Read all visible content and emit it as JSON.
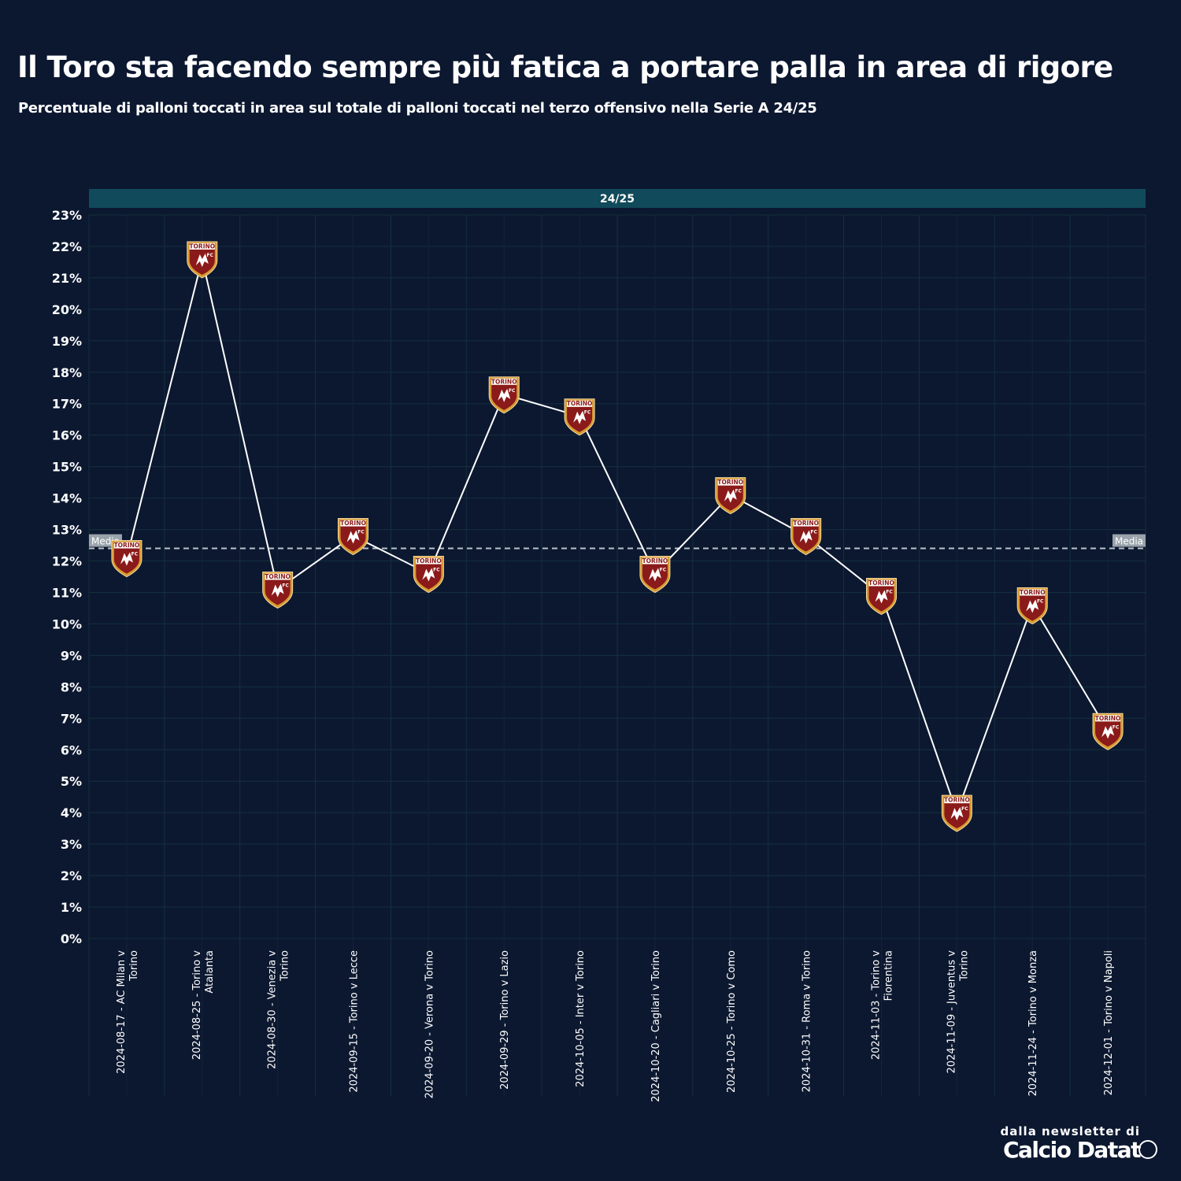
{
  "title": "Il Toro sta facendo sempre più fatica a portare palla in area di rigore",
  "subtitle": "Percentuale di palloni toccati in area sul totale di palloni toccati nel terzo offensivo nella Serie A 24/25",
  "credit": {
    "line1": "dalla newsletter di",
    "line2": "Calcio Datat"
  },
  "chart_data": {
    "type": "line",
    "facet_label": "24/25",
    "categories": [
      "2024-08-17 - AC Milan v Torino",
      "2024-08-25 - Torino v Atalanta",
      "2024-08-30 - Venezia v Torino",
      "2024-09-15 - Torino v Lecce",
      "2024-09-20 - Verona v Torino",
      "2024-09-29 - Torino v Lazio",
      "2024-10-05 - Inter v Torino",
      "2024-10-20 - Cagliari v Torino",
      "2024-10-25 - Torino v Como",
      "2024-10-31 - Roma v Torino",
      "2024-11-03 - Torino v Fiorentina",
      "2024-11-09 - Juventus v Torino",
      "2024-11-24 - Torino v Monza",
      "2024-12-01 - Torino v Napoli"
    ],
    "category_lines": [
      [
        "2024-08-17 - AC Milan v",
        "Torino"
      ],
      [
        "2024-08-25 - Torino v",
        "Atalanta"
      ],
      [
        "2024-08-30 - Venezia v",
        "Torino"
      ],
      [
        "2024-09-15 - Torino v Lecce"
      ],
      [
        "2024-09-20 - Verona v Torino"
      ],
      [
        "2024-09-29 - Torino v Lazio"
      ],
      [
        "2024-10-05 - Inter v Torino"
      ],
      [
        "2024-10-20 - Cagliari v Torino"
      ],
      [
        "2024-10-25 - Torino v Como"
      ],
      [
        "2024-10-31 - Roma v Torino"
      ],
      [
        "2024-11-03 - Torino v",
        "Fiorentina"
      ],
      [
        "2024-11-09 - Juventus v",
        "Torino"
      ],
      [
        "2024-11-24 - Torino v Monza"
      ],
      [
        "2024-12-01 - Torino v Napoli"
      ]
    ],
    "values": [
      12.1,
      21.6,
      11.1,
      12.8,
      11.6,
      17.3,
      16.6,
      11.6,
      14.1,
      12.8,
      10.9,
      4.0,
      10.6,
      6.6
    ],
    "yticks": [
      0,
      1,
      2,
      3,
      4,
      5,
      6,
      7,
      8,
      9,
      10,
      11,
      12,
      13,
      14,
      15,
      16,
      17,
      18,
      19,
      20,
      21,
      22,
      23
    ],
    "ylim": [
      0,
      23
    ],
    "tick_suffix": "%",
    "mean": {
      "value": 12.4,
      "label": "Media"
    },
    "marker_label": "TORINO",
    "marker_sublabel": "FC",
    "grid": true,
    "colors": {
      "background": "#0c1830",
      "grid": "#14303d",
      "strip": "#114a5a",
      "line": "#ffffff",
      "mean": "#b9c2cb",
      "mean_label_bg": "#9aa3ab",
      "badge_red": "#8b1a1a",
      "badge_gold": "#d79a2e"
    }
  }
}
